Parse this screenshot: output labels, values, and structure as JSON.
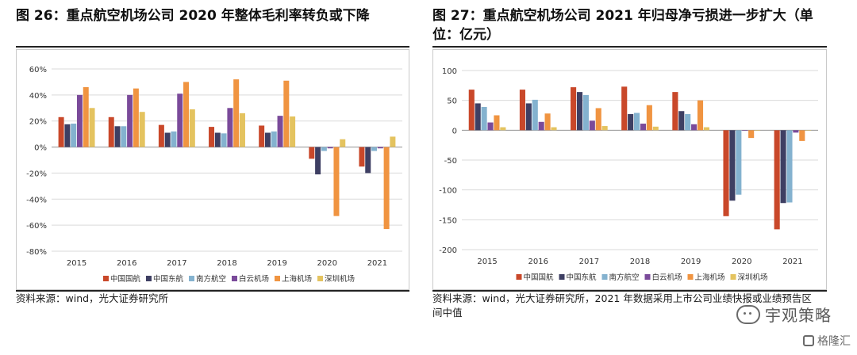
{
  "left": {
    "title": "图 26：重点航空机场公司 2020 年整体毛利率转负或下降",
    "source": "资料来源：wind，光大证券研究所"
  },
  "right": {
    "title": "图 27：重点航空机场公司 2021 年归母净亏损进一步扩大（单位：亿元）",
    "source": "资料来源：wind，光大证券研究所，2021 年数据采用上市公司业绩快报或业绩预告区间中值"
  },
  "watermark": {
    "text": "宇观策略",
    "icon": "wechat-icon",
    "sub": "格隆汇",
    "sub_icon": "gelonghui-icon"
  },
  "chart_data": [
    {
      "type": "bar",
      "categories": [
        "2015",
        "2016",
        "2017",
        "2018",
        "2019",
        "2020",
        "2021"
      ],
      "series": [
        {
          "name": "中国国航",
          "color": "#c9482a",
          "values": [
            23,
            23,
            17,
            15.5,
            16.5,
            -9,
            -15
          ]
        },
        {
          "name": "中国东航",
          "color": "#3e3f63",
          "values": [
            17.5,
            16,
            11,
            11,
            11,
            -21,
            -20
          ]
        },
        {
          "name": "南方航空",
          "color": "#84b2cf",
          "values": [
            18,
            16,
            12,
            10.5,
            12,
            -3,
            -3
          ]
        },
        {
          "name": "白云机场",
          "color": "#7a4a9a",
          "values": [
            40,
            40,
            41,
            30,
            24,
            -1,
            -1
          ]
        },
        {
          "name": "上海机场",
          "color": "#f09441",
          "values": [
            46,
            45,
            50,
            52,
            51,
            -53,
            -63
          ]
        },
        {
          "name": "深圳机场",
          "color": "#e4c35f",
          "values": [
            30,
            27,
            29,
            26,
            23.5,
            6,
            8
          ]
        }
      ],
      "ylim": [
        -80,
        60
      ],
      "yticks": [
        "-80%",
        "-60%",
        "-40%",
        "-20%",
        "0%",
        "20%",
        "40%",
        "60%"
      ],
      "ytick_values": [
        -80,
        -60,
        -40,
        -20,
        0,
        20,
        40,
        60
      ],
      "grid": true,
      "legend": "bottom"
    },
    {
      "type": "bar",
      "categories": [
        "2015",
        "2016",
        "2017",
        "2018",
        "2019",
        "2020",
        "2021"
      ],
      "series": [
        {
          "name": "中国国航",
          "color": "#c9482a",
          "values": [
            68,
            68,
            72,
            73,
            64,
            -144,
            -166
          ]
        },
        {
          "name": "中国东航",
          "color": "#3e3f63",
          "values": [
            45,
            45,
            64,
            27,
            32,
            -118,
            -122
          ]
        },
        {
          "name": "南方航空",
          "color": "#84b2cf",
          "values": [
            39,
            51,
            59,
            29,
            27,
            -108,
            -121
          ]
        },
        {
          "name": "白云机场",
          "color": "#7a4a9a",
          "values": [
            13,
            14,
            16,
            11,
            10,
            -1,
            -4
          ]
        },
        {
          "name": "上海机场",
          "color": "#f09441",
          "values": [
            25,
            28,
            37,
            42,
            50,
            -13,
            -18
          ]
        },
        {
          "name": "深圳机场",
          "color": "#e4c35f",
          "values": [
            5,
            5,
            7,
            6,
            5,
            0,
            0
          ]
        }
      ],
      "ylim": [
        -200,
        100
      ],
      "yticks": [
        "-200",
        "-150",
        "-100",
        "-50",
        "0",
        "50",
        "100"
      ],
      "ytick_values": [
        -200,
        -150,
        -100,
        -50,
        0,
        50,
        100
      ],
      "grid": true,
      "legend": "bottom"
    }
  ]
}
